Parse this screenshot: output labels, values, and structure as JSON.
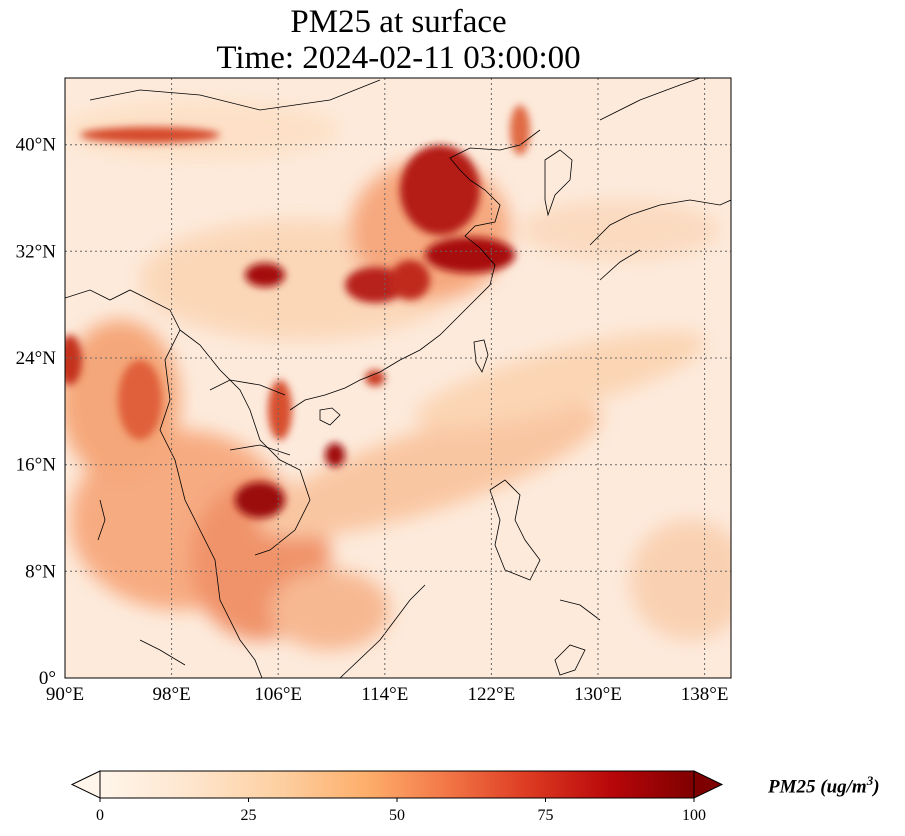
{
  "title": {
    "line1": "PM25 at surface",
    "line2": "Time: 2024-02-11 03:00:00"
  },
  "map": {
    "lon_range": [
      90,
      140
    ],
    "lat_range": [
      0,
      45
    ],
    "lon_ticks": [
      "90°E",
      "98°E",
      "106°E",
      "114°E",
      "122°E",
      "130°E",
      "138°E"
    ],
    "lat_ticks": [
      "0°",
      "8°N",
      "16°N",
      "24°N",
      "32°N",
      "40°N"
    ],
    "gridlines": true,
    "gridline_style": "dotted"
  },
  "colorbar": {
    "label_main": "PM25 (ug/m",
    "label_sup": "3",
    "label_close": ")",
    "ticks": [
      "0",
      "25",
      "50",
      "75",
      "100"
    ],
    "colormap": [
      "#fff5eb",
      "#fee6ce",
      "#fdd0a2",
      "#fdae6b",
      "#fd8d3c",
      "#f16913",
      "#d94801",
      "#a63603",
      "#7f2704"
    ],
    "extend": "both"
  },
  "colors": {
    "low": "#fff5eb",
    "high": "#7f0000"
  }
}
